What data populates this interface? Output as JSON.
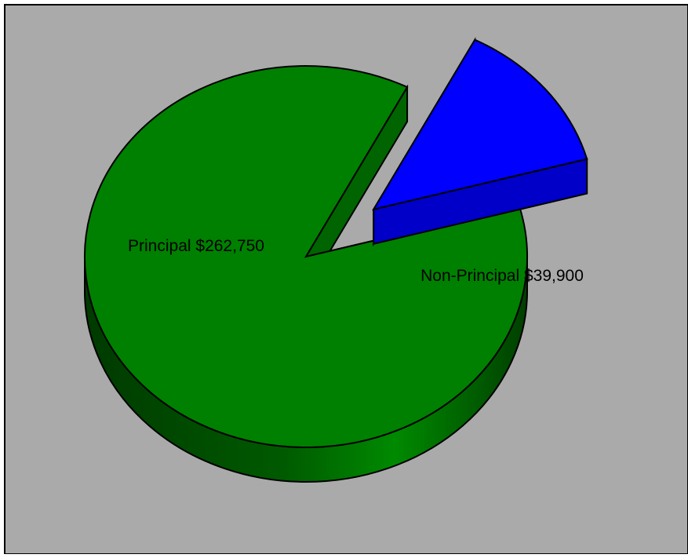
{
  "chart_data": {
    "type": "pie",
    "title": "",
    "slices": [
      {
        "label": "Principal $262,750",
        "value": 262750,
        "color": "#008000",
        "exploded": false
      },
      {
        "label": "Non-Principal $39,900",
        "value": 39900,
        "color": "#0000FF",
        "exploded": true
      }
    ],
    "legend": "none",
    "style": "3d",
    "background_color": "#AAAAAA"
  }
}
